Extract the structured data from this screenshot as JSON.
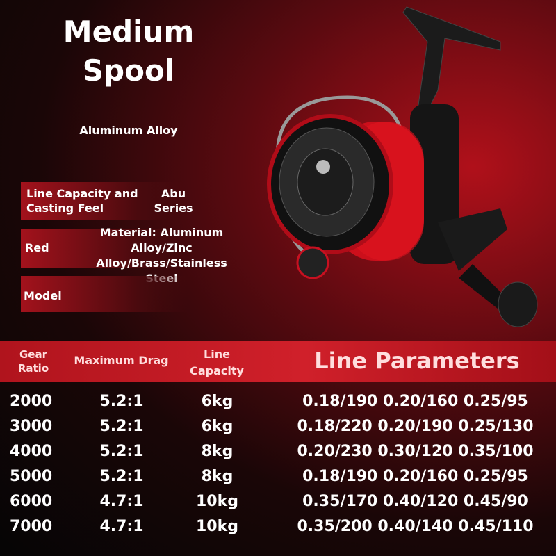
{
  "header": {
    "title": "Medium Spool",
    "subtitle": "Aluminum Alloy"
  },
  "specs": [
    {
      "label": "Line Capacity and Casting Feel",
      "value": "Abu Series"
    },
    {
      "label": "Red",
      "value": "Material: Aluminum Alloy/Zinc Alloy/Brass/Stainless Steel"
    },
    {
      "label": "Model",
      "value": ""
    }
  ],
  "table": {
    "headers": [
      "Gear Ratio",
      "Maximum Drag",
      "Line Capacity",
      "Line Parameters"
    ],
    "rows": [
      [
        "2000",
        "5.2:1",
        "6kg",
        "0.18/190 0.20/160 0.25/95"
      ],
      [
        "3000",
        "5.2:1",
        "6kg",
        "0.18/220 0.20/190 0.25/130"
      ],
      [
        "4000",
        "5.2:1",
        "8kg",
        "0.20/230 0.30/120 0.35/100"
      ],
      [
        "5000",
        "5.2:1",
        "8kg",
        "0.18/190 0.20/160 0.25/95"
      ],
      [
        "6000",
        "4.7:1",
        "10kg",
        "0.35/170 0.40/120 0.45/90"
      ],
      [
        "7000",
        "4.7:1",
        "10kg",
        "0.35/200 0.40/140 0.45/110"
      ]
    ]
  }
}
